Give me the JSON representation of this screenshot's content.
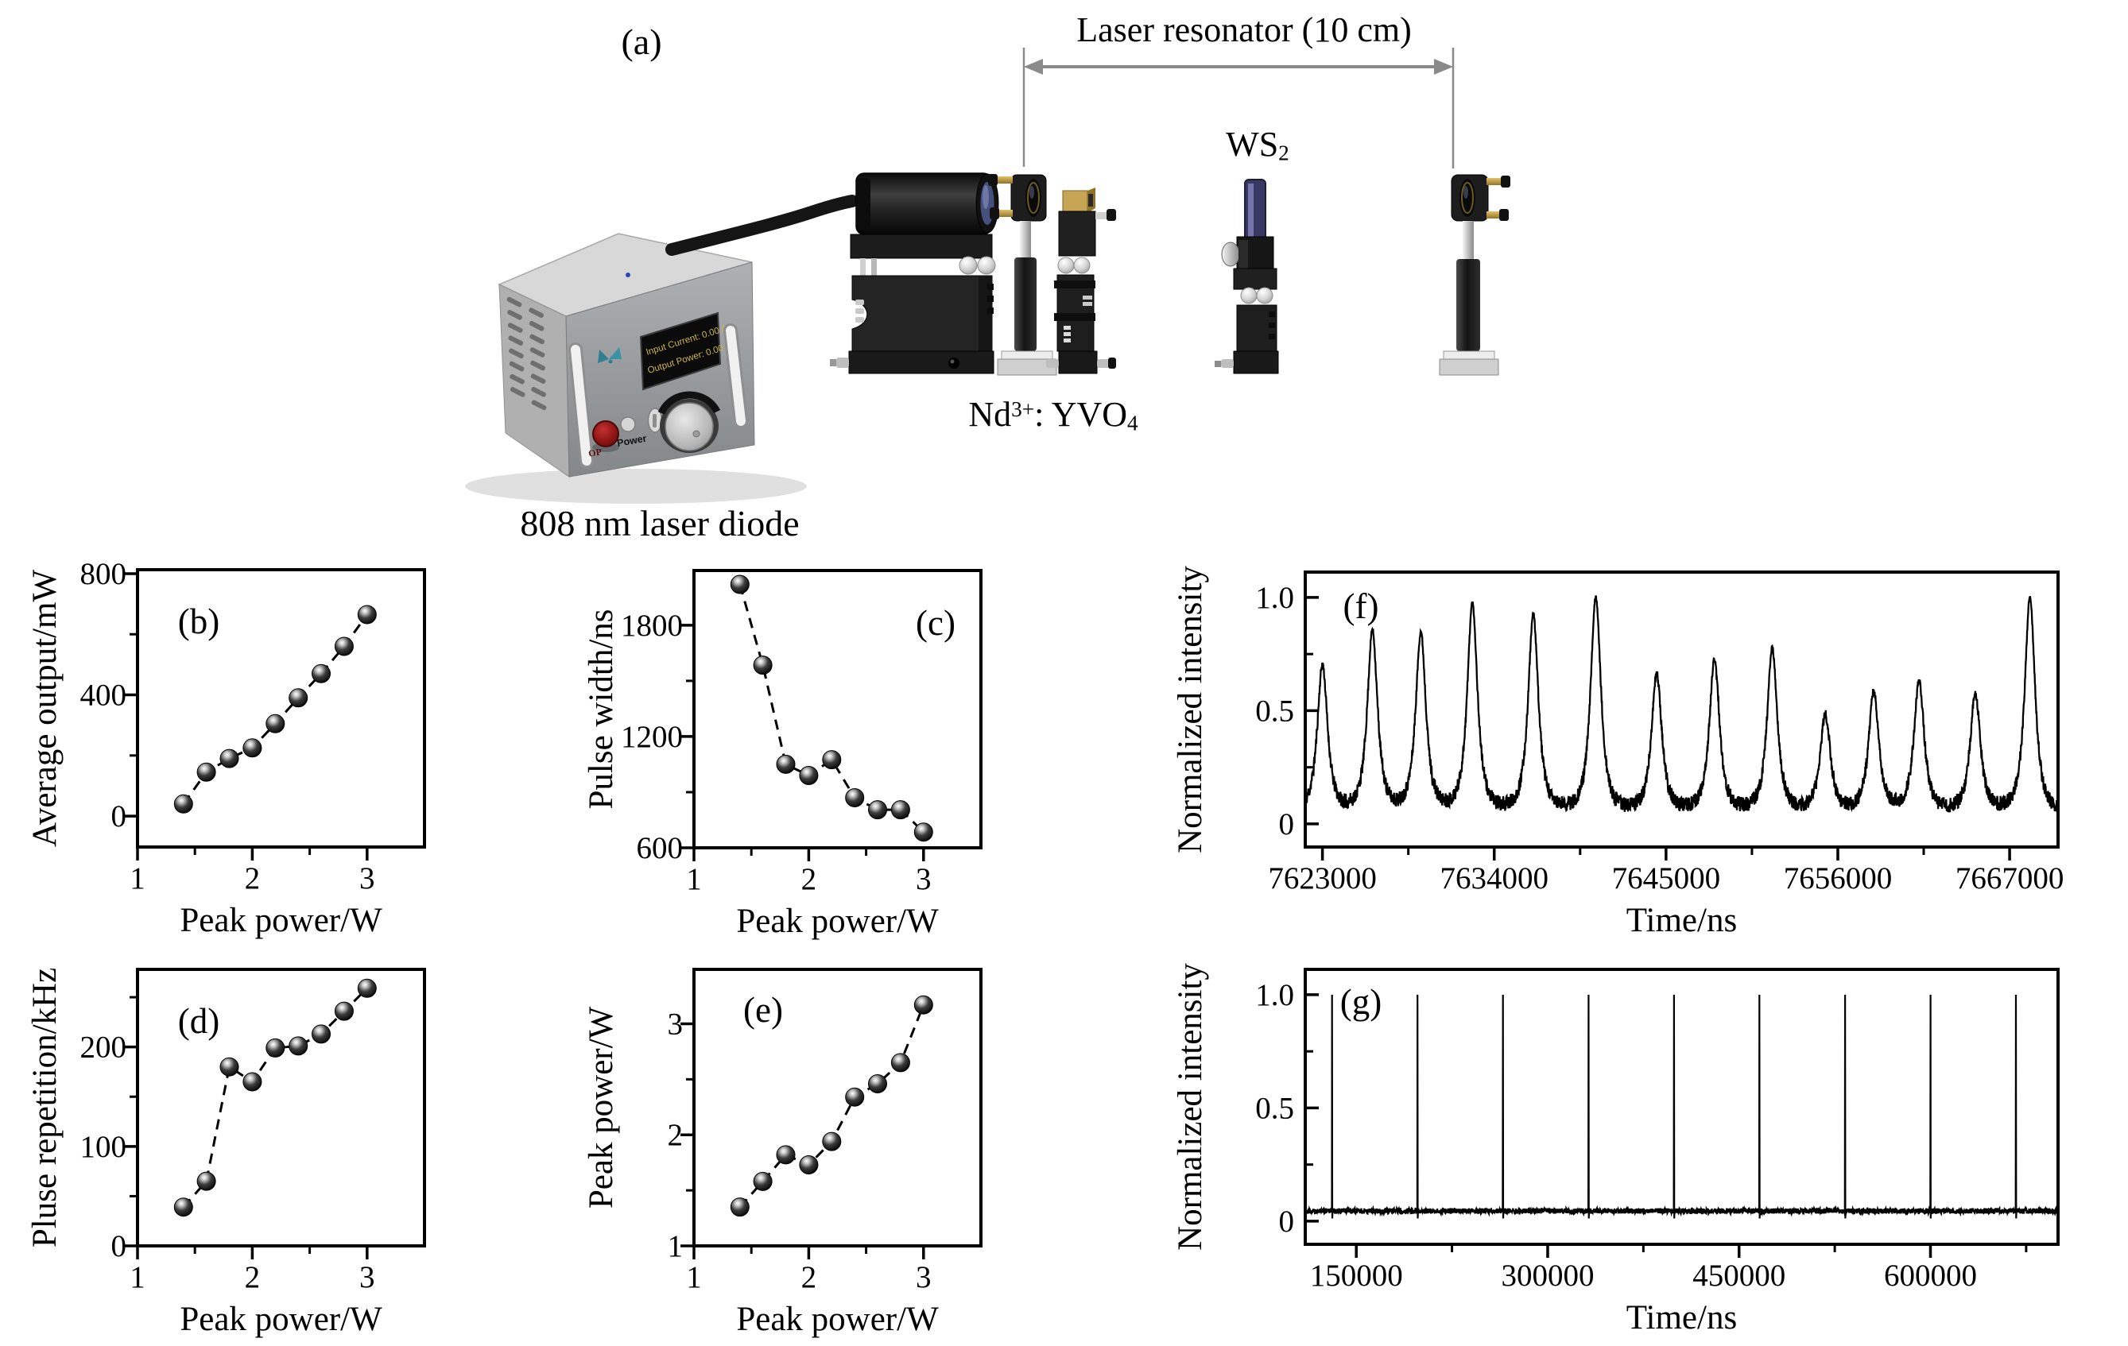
{
  "figure": {
    "panel_a": {
      "label": "(a)",
      "resonator_label": "Laser resonator (10 cm)",
      "ws2": {
        "base": "WS",
        "sub": "2"
      },
      "nd": {
        "base": "Nd",
        "sup": "3+",
        "mid": ": YVO",
        "sub": "4"
      },
      "diode_label": "808 nm laser diode",
      "display": {
        "line1": "Input Current:  0.00 A",
        "line2": "Output Power:  0.00 W"
      },
      "power_label": "Power",
      "stop_label": "OP"
    }
  },
  "chart_data": [
    {
      "id": "b",
      "type": "scatter",
      "label": "(b)",
      "title": "",
      "xlabel": "Peak power/W",
      "ylabel": "Average output/mW",
      "xlim": [
        1,
        3.5
      ],
      "ylim": [
        -102,
        813
      ],
      "xticks": [
        1,
        2,
        3
      ],
      "xminor": [
        1.5,
        2.5
      ],
      "yticks": [
        0,
        400,
        800
      ],
      "yminor": [
        200,
        600
      ],
      "x": [
        1.4,
        1.6,
        1.8,
        2.0,
        2.2,
        2.4,
        2.6,
        2.8,
        3.0
      ],
      "y": [
        40,
        145,
        190,
        225,
        305,
        390,
        470,
        560,
        665
      ],
      "grid": false,
      "legend": "none"
    },
    {
      "id": "c",
      "type": "scatter",
      "label": "(c)",
      "title": "",
      "xlabel": "Peak power/W",
      "ylabel": "Pulse width/ns",
      "xlim": [
        1,
        3.5
      ],
      "ylim": [
        600,
        2095
      ],
      "xticks": [
        1,
        2,
        3
      ],
      "xminor": [
        1.5,
        2.5
      ],
      "yticks": [
        600,
        1200,
        1800
      ],
      "yminor": [
        900,
        1500
      ],
      "x": [
        1.4,
        1.6,
        1.8,
        2.0,
        2.2,
        2.4,
        2.6,
        2.8,
        3.0
      ],
      "y": [
        2020,
        1585,
        1050,
        990,
        1075,
        870,
        805,
        805,
        685
      ],
      "grid": false,
      "legend": "none"
    },
    {
      "id": "d",
      "type": "scatter",
      "label": "(d)",
      "title": "",
      "xlabel": "Peak power/W",
      "ylabel": "Pluse repetition/kHz",
      "xlim": [
        1,
        3.5
      ],
      "ylim": [
        0,
        278
      ],
      "xticks": [
        1,
        2,
        3
      ],
      "xminor": [
        1.5,
        2.5
      ],
      "yticks": [
        0,
        100,
        200
      ],
      "yminor": [
        50,
        150,
        250
      ],
      "x": [
        1.4,
        1.6,
        1.8,
        2.0,
        2.2,
        2.4,
        2.6,
        2.8,
        3.0
      ],
      "y": [
        39,
        65,
        180,
        165,
        199,
        201,
        213,
        236,
        259
      ],
      "grid": false,
      "legend": "none"
    },
    {
      "id": "e",
      "type": "scatter",
      "label": "(e)",
      "title": "",
      "xlabel": "Peak power/W",
      "ylabel": "Peak power/W",
      "xlim": [
        1,
        3.5
      ],
      "ylim": [
        1,
        3.49
      ],
      "xticks": [
        1,
        2,
        3
      ],
      "xminor": [
        1.5,
        2.5
      ],
      "yticks": [
        1,
        2,
        3
      ],
      "yminor": [
        1.5,
        2.5
      ],
      "x": [
        1.4,
        1.6,
        1.8,
        2.0,
        2.2,
        2.4,
        2.6,
        2.8,
        3.0
      ],
      "y": [
        1.35,
        1.58,
        1.82,
        1.73,
        1.94,
        2.34,
        2.46,
        2.65,
        3.17
      ],
      "grid": false,
      "legend": "none"
    },
    {
      "id": "f",
      "type": "line",
      "subtype": "pulse_train",
      "label": "(f)",
      "title": "",
      "xlabel": "Time/ns",
      "ylabel": "Normalized intensity",
      "xlim": [
        7621900,
        7670100
      ],
      "ylim": [
        -0.102,
        1.112
      ],
      "xticks": [
        7623000,
        7634000,
        7645000,
        7656000,
        7667000
      ],
      "xminor": [
        7628500,
        7639500,
        7650500,
        7661500
      ],
      "yticks": [
        0,
        0.5,
        1.0
      ],
      "ytick_labels": [
        "0",
        "0.5",
        "1.0"
      ],
      "yminor": [
        0.25,
        0.75
      ],
      "peaks": {
        "t": [
          7623000,
          7626200,
          7629300,
          7632600,
          7636500,
          7640500,
          7644400,
          7648100,
          7651800,
          7655200,
          7658300,
          7661200,
          7664800,
          7668300
        ],
        "h": [
          0.7,
          0.85,
          0.84,
          0.97,
          0.92,
          1.0,
          0.66,
          0.72,
          0.77,
          0.48,
          0.58,
          0.63,
          0.57,
          1.0
        ],
        "width_ns": 480,
        "baseline": 0.055,
        "noise": 0.055
      },
      "grid": false,
      "legend": "none"
    },
    {
      "id": "g",
      "type": "line",
      "subtype": "spike_train",
      "label": "(g)",
      "title": "",
      "xlabel": "Time/ns",
      "ylabel": "Normalized intensity",
      "xlim": [
        110000,
        700000
      ],
      "ylim": [
        -0.102,
        1.112
      ],
      "xticks": [
        150000,
        300000,
        450000,
        600000
      ],
      "xminor": [
        225000,
        375000,
        525000,
        675000
      ],
      "yticks": [
        0,
        0.5,
        1.0
      ],
      "ytick_labels": [
        "0",
        "0.5",
        "1.0"
      ],
      "yminor": [
        0.25,
        0.75
      ],
      "spikes": {
        "t": [
          131000,
          198000,
          265000,
          332000,
          399000,
          466000,
          533000,
          600000,
          667000
        ],
        "height": 1.0,
        "baseline": 0.045,
        "noise": 0.024
      },
      "grid": false,
      "legend": "none"
    }
  ]
}
